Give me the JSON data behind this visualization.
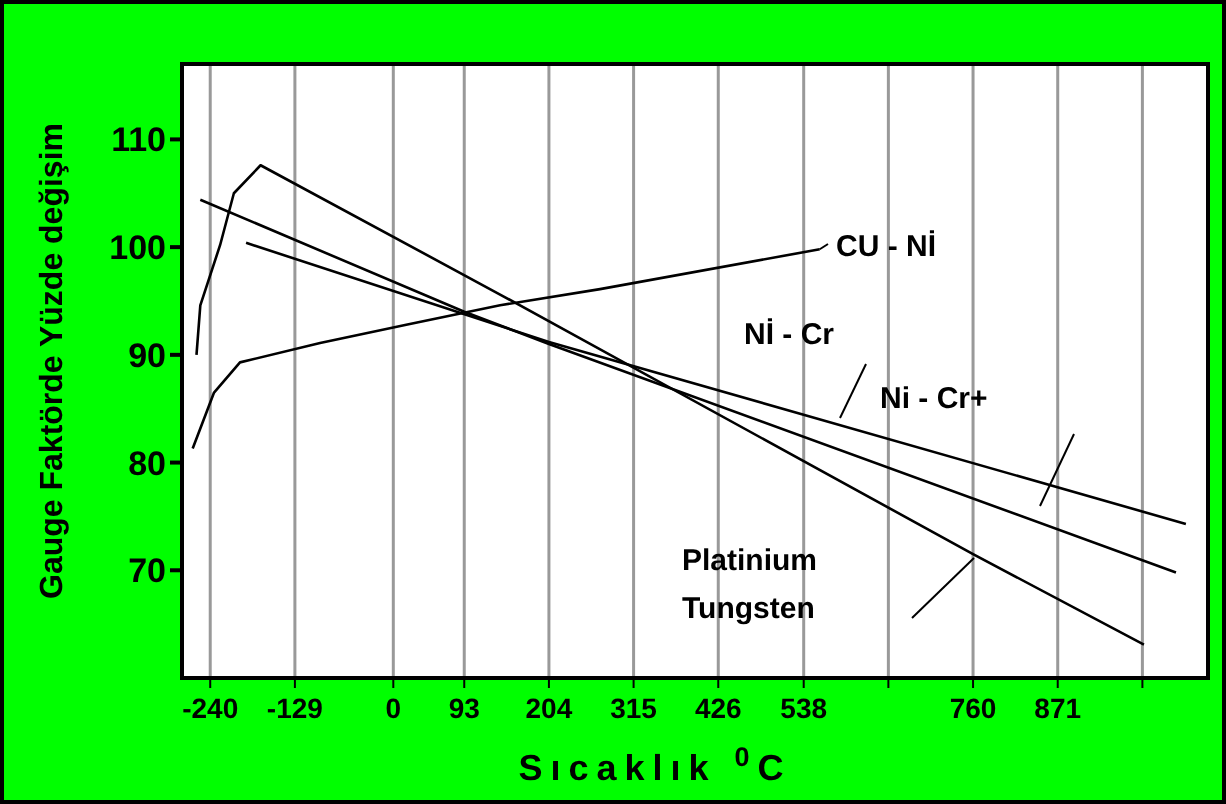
{
  "chart_data": {
    "type": "line",
    "xlabel": "Sıcaklık $^{0}$C",
    "ylabel": "Gauge Faktörde Yüzde değişim",
    "xlim": [
      -277,
      1068
    ],
    "ylim": [
      60,
      117
    ],
    "xticks": [
      -240,
      -129,
      0,
      93,
      204,
      315,
      426,
      538,
      {
        "value": 649,
        "label": null
      },
      760,
      871,
      {
        "value": 982,
        "label": null
      }
    ],
    "yticks": [
      70,
      80,
      90,
      100,
      110
    ],
    "grid": "x",
    "legend": "right",
    "marker": "none",
    "line_style": "solid",
    "series": [
      {
        "name": "CU - Nİ",
        "color": "#000000",
        "x": [
          -263,
          -235,
          -201,
          -96,
          17,
          140,
          271,
          559
        ],
        "values": [
          81.3,
          86.5,
          89.3,
          91.1,
          92.8,
          94.6,
          96.1,
          99.8
        ]
      },
      {
        "name": "Nİ -  Cr",
        "color": "#000000",
        "x": [
          -193,
          204,
          1039
        ],
        "values": [
          100.4,
          91.2,
          74.3
        ]
      },
      {
        "name": "Ni - Cr+",
        "color": "#000000",
        "x": [
          -253,
          93,
          204,
          1026
        ],
        "values": [
          104.4,
          94,
          91,
          69.8
        ]
      },
      {
        "name": "Platinium Tungsten",
        "color": "#000000",
        "x": [
          -258,
          -253,
          -227,
          -209,
          -174,
          140,
          760,
          984
        ],
        "values": [
          90,
          94.6,
          100.2,
          105,
          107.6,
          95.6,
          71.5,
          63.1
        ]
      }
    ]
  }
}
